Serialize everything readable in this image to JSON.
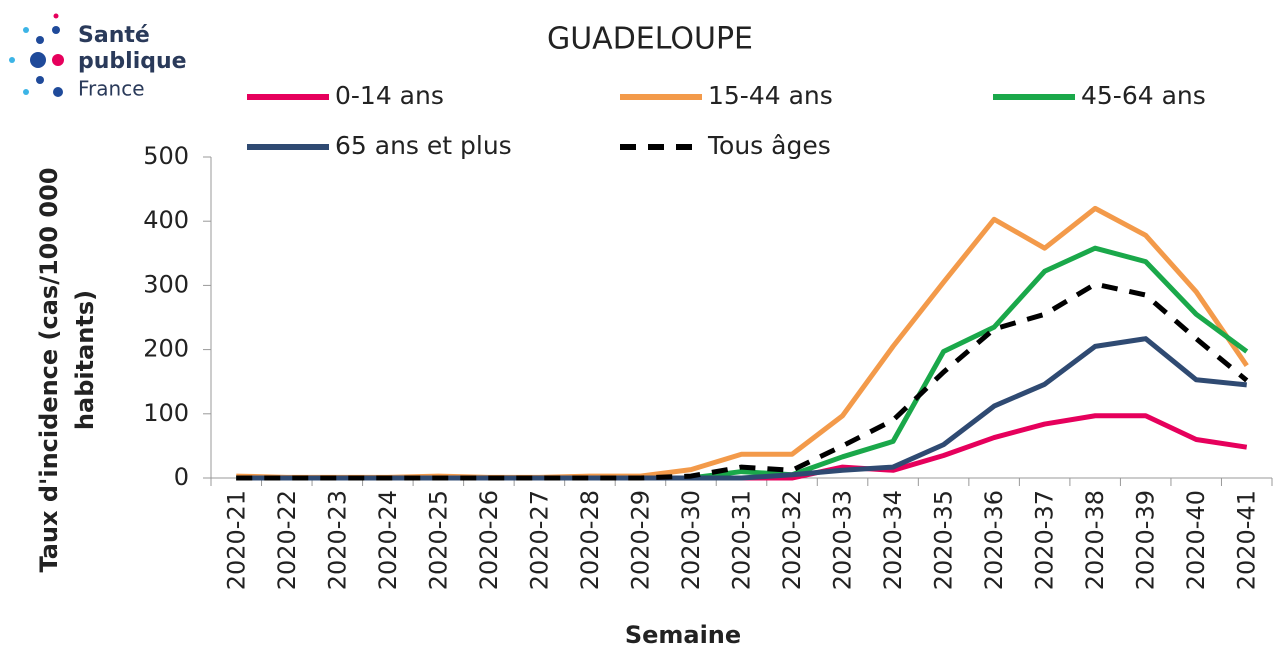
{
  "logo": {
    "lines": [
      "Santé",
      "publique",
      "France"
    ]
  },
  "chart_data": {
    "type": "line",
    "title": "GUADELOUPE",
    "ylabel": [
      "Taux d'incidence  (cas/100 000",
      "habitants)"
    ],
    "xlabel": "Semaine",
    "categories": [
      "2020-21",
      "2020-22",
      "2020-23",
      "2020-24",
      "2020-25",
      "2020-26",
      "2020-27",
      "2020-28",
      "2020-29",
      "2020-30",
      "2020-31",
      "2020-32",
      "2020-33",
      "2020-34",
      "2020-35",
      "2020-36",
      "2020-37",
      "2020-38",
      "2020-39",
      "2020-40",
      "2020-41"
    ],
    "ylim": [
      0,
      500
    ],
    "yticks": [
      0,
      100,
      200,
      300,
      400,
      500
    ],
    "series": [
      {
        "name": "0-14 ans",
        "color": "#e6005c",
        "values": [
          0,
          0,
          0,
          0,
          0,
          0,
          0,
          0,
          0,
          0,
          0,
          0,
          17,
          12,
          35,
          63,
          84,
          97,
          97,
          60,
          48
        ]
      },
      {
        "name": "15-44 ans",
        "color": "#f39a4a",
        "values": [
          3,
          1,
          1,
          1,
          3,
          1,
          1,
          3,
          3,
          13,
          37,
          37,
          97,
          205,
          305,
          403,
          358,
          420,
          378,
          290,
          175
        ]
      },
      {
        "name": "45-64 ans",
        "color": "#1aa84a",
        "values": [
          0,
          0,
          0,
          0,
          0,
          0,
          0,
          0,
          0,
          0,
          10,
          5,
          33,
          57,
          197,
          235,
          322,
          358,
          337,
          255,
          197
        ]
      },
      {
        "name": "65 ans et plus",
        "color": "#2f4a72",
        "values": [
          0,
          0,
          0,
          0,
          0,
          0,
          0,
          0,
          0,
          0,
          0,
          5,
          12,
          17,
          52,
          112,
          146,
          205,
          217,
          153,
          145
        ]
      },
      {
        "name": "Tous âges",
        "color": "#000000",
        "dash": true,
        "values": [
          0,
          0,
          0,
          0,
          0,
          0,
          0,
          0,
          0,
          3,
          17,
          12,
          50,
          90,
          165,
          232,
          255,
          302,
          285,
          217,
          152
        ]
      }
    ]
  }
}
